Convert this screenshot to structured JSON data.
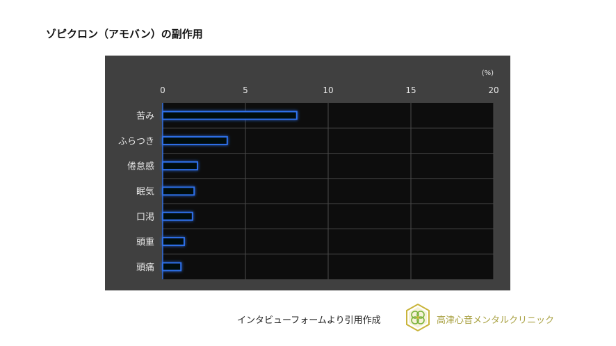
{
  "page": {
    "title": "ゾピクロン（アモバン）の副作用"
  },
  "footer": {
    "source_text": "インタビューフォームより引用作成",
    "clinic_name": "高津心音メンタルクリニック",
    "logo_icon": "clover-hexagon-logo-icon"
  },
  "colors": {
    "panel_bg": "#404040",
    "plot_bg": "#0d0d0d",
    "grid": "#4a4a4a",
    "bar_stroke": "#2f6fe8",
    "bar_glow": "#1e4fd0",
    "axis_text": "#e8e8e8",
    "logo_gold": "#c9b43a",
    "logo_green": "#7ab33c"
  },
  "chart_data": {
    "type": "bar",
    "orientation": "horizontal",
    "title": "",
    "unit_label": "(%)",
    "xlim": [
      0,
      20
    ],
    "xticks": [
      0,
      5,
      10,
      15,
      20
    ],
    "xtick_labels": [
      "0",
      "5",
      "10",
      "15",
      "20"
    ],
    "categories": [
      "苦み",
      "ふらつき",
      "倦怠感",
      "眠気",
      "口渇",
      "頭重",
      "頭痛"
    ],
    "values": [
      8.1,
      3.9,
      2.1,
      1.9,
      1.8,
      1.3,
      1.1
    ],
    "grid": true
  }
}
